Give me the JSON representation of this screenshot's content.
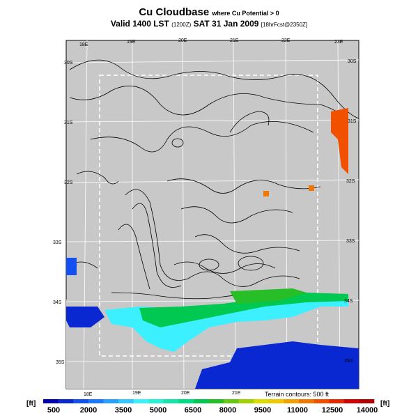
{
  "header": {
    "title": "Cu Cloudbase",
    "title_sub": "where Cu Potential > 0",
    "valid_line": "Valid 1400 LST",
    "valid_utc": "(1200Z)",
    "valid_date": "SAT 31 Jan 2009",
    "forecast_note": "[18hrFcst@2350Z]"
  },
  "map": {
    "lon_labels_top": [
      "18E",
      "19E",
      "20E",
      "21E",
      "22E",
      "23E"
    ],
    "lon_labels_bottom": [
      "18E",
      "19E",
      "20E",
      "21E"
    ],
    "lat_labels_left": [
      "30S",
      "31S",
      "32S",
      "33S",
      "34S",
      "35S"
    ],
    "lat_labels_right": [
      "30S",
      "31S",
      "32S",
      "33S",
      "34S",
      "35S"
    ],
    "land_color": "#c8c8c8",
    "grid_color": "#ffffff",
    "terrain_contour_interval_ft": 500
  },
  "terrain_note": "Terrain contours: 500 ft",
  "colorbar": {
    "unit_left": "[ft]",
    "unit_right": "[ft]",
    "labels": [
      "500",
      "2000",
      "3500",
      "5000",
      "6500",
      "8000",
      "9500",
      "11000",
      "12500",
      "14000"
    ],
    "colors": [
      "#0000b4",
      "#0a28d2",
      "#1450f0",
      "#1e78ff",
      "#28a0ff",
      "#32c8ff",
      "#3cf0ff",
      "#28f0d2",
      "#14e6aa",
      "#00dc82",
      "#00c850",
      "#28be28",
      "#64c814",
      "#a0d200",
      "#dcdc00",
      "#f0c800",
      "#f0a000",
      "#f07800",
      "#f05000",
      "#e62800",
      "#d20000",
      "#b40000"
    ]
  }
}
